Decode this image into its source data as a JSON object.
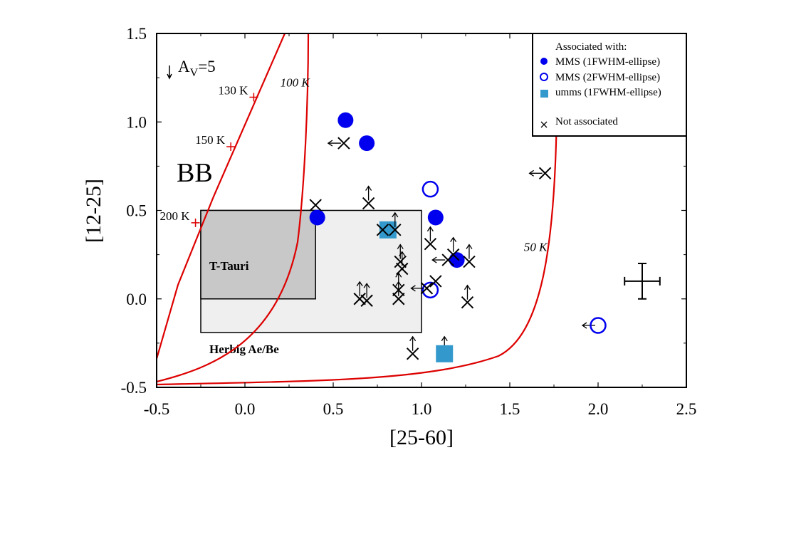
{
  "chart_data": {
    "type": "scatter",
    "xlabel": "[25-60]",
    "ylabel": "[12-25]",
    "xlim": [
      -0.5,
      2.5
    ],
    "ylim": [
      -0.5,
      1.5
    ],
    "x_ticks": [
      "-0.5",
      "0.0",
      "0.5",
      "1.0",
      "1.5",
      "2.0",
      "2.5"
    ],
    "y_ticks": [
      "-0.5",
      "0.0",
      "0.5",
      "1.0",
      "1.5"
    ],
    "legend": {
      "position": "top-right",
      "title": "Associated with:",
      "entries": [
        {
          "label": "MMS (1FWHM-ellipse)",
          "marker": "filled-circle",
          "color": "#0000ee"
        },
        {
          "label": "MMS (2FWHM-ellipse)",
          "marker": "open-circle",
          "color": "#0000ee"
        },
        {
          "label": "umms (1FWHM-ellipse)",
          "marker": "square",
          "color": "#3399cc"
        },
        {
          "label": "Not associated",
          "marker": "cross",
          "color": "#000000"
        }
      ]
    },
    "regions": [
      {
        "label": "T-Tauri",
        "x": [
          -0.25,
          0.4
        ],
        "y": [
          0.0,
          0.5
        ],
        "color": "#c8c8c8"
      },
      {
        "label": "Herbig Ae/Be",
        "x": [
          -0.25,
          1.0
        ],
        "y": [
          -0.19,
          0.5
        ],
        "color": "#efefef"
      }
    ],
    "annotations": {
      "bb": "BB",
      "extinction_prefix": "A",
      "extinction_sub": "V",
      "extinction_suffix": "=5"
    },
    "curves": [
      {
        "name": "blackbody",
        "color": "#dd0000",
        "markers": [
          {
            "label": "130 K",
            "x": 0.05,
            "y": 1.14
          },
          {
            "label": "150 K",
            "x": -0.08,
            "y": 0.86
          },
          {
            "label": "200 K",
            "x": -0.28,
            "y": 0.43
          }
        ]
      },
      {
        "name": "100 K",
        "label": "100 K",
        "color": "#dd0000",
        "label_x": 0.2,
        "label_y": 1.2
      },
      {
        "name": "50 K",
        "label": "50 K",
        "color": "#dd0000",
        "label_x": 1.58,
        "label_y": 0.27
      }
    ],
    "series": [
      {
        "name": "MMS (1FWHM-ellipse)",
        "marker": "filled-circle",
        "color": "#0000ee",
        "points": [
          {
            "x": 0.57,
            "y": 1.01,
            "arrow": ""
          },
          {
            "x": 0.69,
            "y": 0.88,
            "arrow": ""
          },
          {
            "x": 0.41,
            "y": 0.46,
            "arrow": ""
          },
          {
            "x": 1.08,
            "y": 0.46,
            "arrow": ""
          },
          {
            "x": 1.2,
            "y": 0.22,
            "arrow": ""
          }
        ]
      },
      {
        "name": "MMS (2FWHM-ellipse)",
        "marker": "open-circle",
        "color": "#0000ee",
        "points": [
          {
            "x": 1.05,
            "y": 0.62,
            "arrow": ""
          },
          {
            "x": 1.05,
            "y": 0.05,
            "arrow": ""
          },
          {
            "x": 2.0,
            "y": -0.15,
            "arrow": "left"
          }
        ]
      },
      {
        "name": "umms (1FWHM-ellipse)",
        "marker": "square",
        "color": "#3399cc",
        "points": [
          {
            "x": 0.81,
            "y": 0.39,
            "arrow": ""
          },
          {
            "x": 1.13,
            "y": -0.31,
            "arrow": "up"
          }
        ]
      },
      {
        "name": "Not associated",
        "marker": "cross",
        "color": "#000000",
        "points": [
          {
            "x": 0.56,
            "y": 0.88,
            "arrow": "left"
          },
          {
            "x": 1.7,
            "y": 0.71,
            "arrow": "left"
          },
          {
            "x": 0.4,
            "y": 0.53,
            "arrow": ""
          },
          {
            "x": 0.7,
            "y": 0.54,
            "arrow": "up"
          },
          {
            "x": 0.78,
            "y": 0.39,
            "arrow": ""
          },
          {
            "x": 0.85,
            "y": 0.39,
            "arrow": "up"
          },
          {
            "x": 1.05,
            "y": 0.31,
            "arrow": "up"
          },
          {
            "x": 1.15,
            "y": 0.22,
            "arrow": "left"
          },
          {
            "x": 1.18,
            "y": 0.25,
            "arrow": "up"
          },
          {
            "x": 1.27,
            "y": 0.21,
            "arrow": "up"
          },
          {
            "x": 0.88,
            "y": 0.21,
            "arrow": "up"
          },
          {
            "x": 0.89,
            "y": 0.17,
            "arrow": "up"
          },
          {
            "x": 1.08,
            "y": 0.1,
            "arrow": ""
          },
          {
            "x": 1.03,
            "y": 0.06,
            "arrow": "left"
          },
          {
            "x": 0.87,
            "y": 0.05,
            "arrow": "up"
          },
          {
            "x": 0.87,
            "y": 0.0,
            "arrow": "up"
          },
          {
            "x": 0.65,
            "y": 0.0,
            "arrow": "up"
          },
          {
            "x": 0.69,
            "y": -0.01,
            "arrow": "up"
          },
          {
            "x": 1.26,
            "y": -0.02,
            "arrow": "up"
          },
          {
            "x": 0.95,
            "y": -0.31,
            "arrow": "up"
          }
        ]
      }
    ],
    "error_bar": {
      "x": 2.25,
      "y": 0.1,
      "x_err": 0.1,
      "y_err": 0.1
    }
  }
}
